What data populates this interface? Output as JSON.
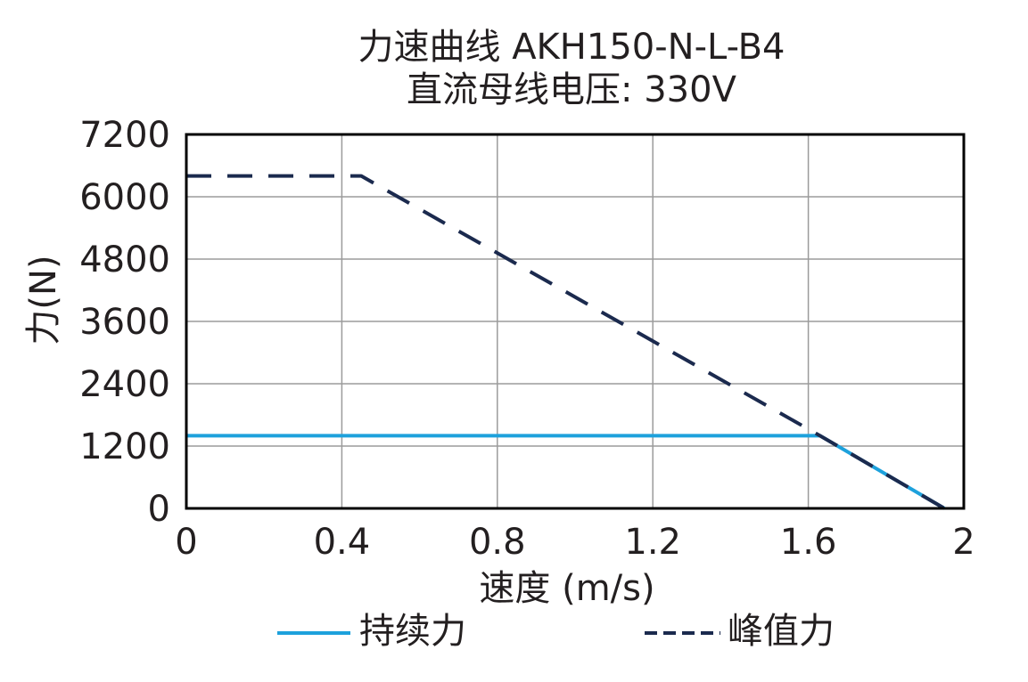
{
  "chart_data": {
    "type": "line",
    "title_line1": "力速曲线 AKH150-N-L-B4",
    "title_line2": "直流母线电压: 330V",
    "xlabel": "速度 (m/s)",
    "ylabel": "力(N)",
    "xlim": [
      0,
      2
    ],
    "ylim": [
      0,
      7200
    ],
    "xticks": [
      "0",
      "0.4",
      "0.8",
      "1.2",
      "1.6",
      "2"
    ],
    "yticks": [
      "0",
      "1200",
      "2400",
      "3600",
      "4800",
      "6000",
      "7200"
    ],
    "grid": true,
    "legend_position": "bottom",
    "series": [
      {
        "name": "持续力",
        "style": "solid",
        "color": "#1da1dc",
        "x": [
          0,
          1.63,
          1.95
        ],
        "y": [
          1400,
          1400,
          0
        ]
      },
      {
        "name": "峰值力",
        "style": "dashed",
        "color": "#1b2a4e",
        "x": [
          0,
          0.45,
          1.63,
          1.95
        ],
        "y": [
          6400,
          6400,
          1400,
          0
        ]
      }
    ]
  }
}
